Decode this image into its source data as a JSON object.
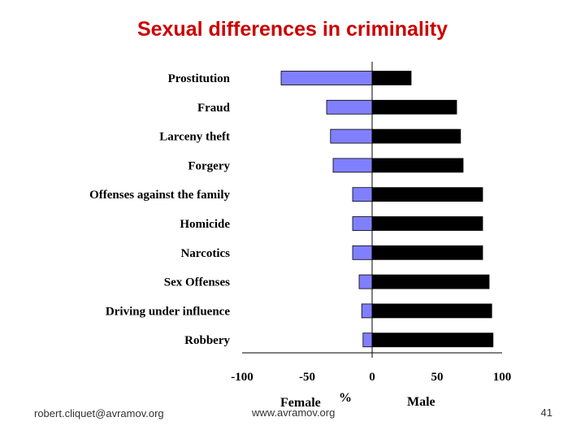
{
  "slide": {
    "title": "Sexual differences in criminality",
    "footer_email": "robert.cliquet@avramov.org",
    "footer_site": "www.avramov.org",
    "page_number": "41"
  },
  "chart_data": {
    "type": "bar",
    "orientation": "horizontal",
    "categories": [
      "Prostitution",
      "Fraud",
      "Larceny theft",
      "Forgery",
      "Offenses against the family",
      "Homicide",
      "Narcotics",
      "Sex Offenses",
      "Driving under influence",
      "Robbery"
    ],
    "series": [
      {
        "name": "Female",
        "color": "#8080ff",
        "values": [
          -70,
          -35,
          -32,
          -30,
          -15,
          -15,
          -15,
          -10,
          -8,
          -7
        ]
      },
      {
        "name": "Male",
        "color": "#000000",
        "values": [
          30,
          65,
          68,
          70,
          85,
          85,
          85,
          90,
          92,
          93
        ]
      }
    ],
    "xlim": [
      -100,
      100
    ],
    "xticks": [
      "-100",
      "-50",
      "0",
      "50",
      "100"
    ],
    "xlabel": "%",
    "xlabel_left": "Female",
    "xlabel_right": "Male",
    "grid": false
  }
}
